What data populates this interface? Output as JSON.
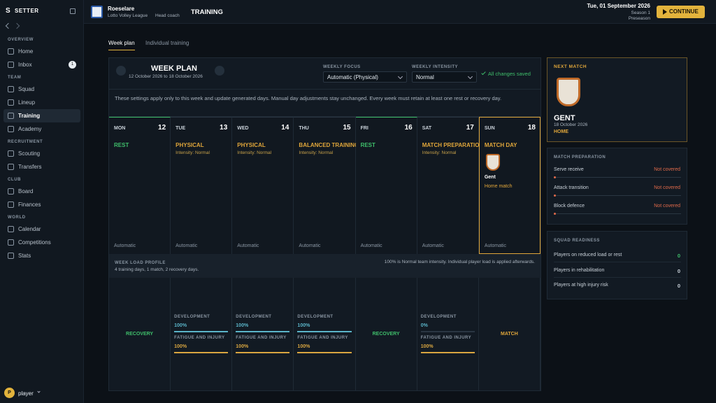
{
  "sidebar": {
    "logo_letter": "S",
    "brand": "SETTER",
    "sections": [
      {
        "title": "OVERVIEW",
        "items": [
          {
            "label": "Home"
          },
          {
            "label": "Inbox",
            "badge": 1
          }
        ]
      },
      {
        "title": "TEAM",
        "items": [
          {
            "label": "Squad"
          },
          {
            "label": "Lineup"
          },
          {
            "label": "Training",
            "active": true
          },
          {
            "label": "Academy"
          }
        ]
      },
      {
        "title": "RECRUITMENT",
        "items": [
          {
            "label": "Scouting"
          },
          {
            "label": "Transfers"
          }
        ]
      },
      {
        "title": "CLUB",
        "items": [
          {
            "label": "Board"
          },
          {
            "label": "Finances"
          }
        ]
      },
      {
        "title": "WORLD",
        "items": [
          {
            "label": "Calendar"
          },
          {
            "label": "Competitions"
          },
          {
            "label": "Stats"
          }
        ]
      }
    ],
    "user": {
      "initial": "P",
      "name": "player"
    }
  },
  "header": {
    "team": "Roeselare",
    "league": "Lotto Volley League",
    "role": "Head coach",
    "page": "TRAINING",
    "date": "Tue, 01 September 2026",
    "season": "Season 1",
    "phase": "Preseason",
    "button": "CONTINUE"
  },
  "tabs": [
    {
      "label": "Week plan",
      "active": true
    },
    {
      "label": "Individual training"
    }
  ],
  "week_plan": {
    "title": "WEEK PLAN",
    "range": "12 October 2026 to 18 October 2026",
    "focus_label": "WEEKLY FOCUS",
    "focus": "Automatic (Physical)",
    "intensity_label": "WEEKLY INTENSITY",
    "intensity": "Normal",
    "status": "All changes saved",
    "note": "These settings apply only to this week and update generated days. Manual day adjustments stay unchanged. Every week must retain at least one rest or recovery day.",
    "days": [
      {
        "weekday": "MON",
        "date": 12,
        "session": "REST",
        "color": "#3fbf6b",
        "mode": "Automatic"
      },
      {
        "weekday": "TUE",
        "date": 13,
        "session": "PHYSICAL",
        "color": "#e0a63a",
        "intensity": "Intensity: Normal",
        "mode": "Automatic"
      },
      {
        "weekday": "WED",
        "date": 14,
        "session": "PHYSICAL",
        "color": "#e0a63a",
        "intensity": "Intensity: Normal",
        "mode": "Automatic"
      },
      {
        "weekday": "THU",
        "date": 15,
        "session": "BALANCED TRAINING",
        "color": "#e0a63a",
        "intensity": "Intensity: Normal",
        "mode": "Automatic"
      },
      {
        "weekday": "FRI",
        "date": 16,
        "session": "REST",
        "color": "#3fbf6b",
        "mode": "Automatic"
      },
      {
        "weekday": "SAT",
        "date": 17,
        "session": "MATCH PREPARATION",
        "color": "#e0a63a",
        "intensity": "Intensity: Normal",
        "mode": "Automatic"
      },
      {
        "weekday": "SUN",
        "date": 18,
        "session": "MATCH DAY",
        "color": "#e0a63a",
        "opponent": "Gent",
        "match": "Home match",
        "mode": "Automatic"
      }
    ],
    "load_profile": {
      "title": "WEEK LOAD PROFILE",
      "summary": "4 training days, 1 match, 2 recovery days.",
      "note": "100% is Normal team intensity. Individual player load is applied afterwards.",
      "columns": [
        {
          "label": "RECOVERY",
          "color": "#3fbf6b"
        },
        {
          "development_label": "DEVELOPMENT",
          "development": {
            "value": 100,
            "label": "100%"
          },
          "fatigue_label": "FATIGUE AND INJURY",
          "fatigue": {
            "value": 100,
            "label": "100%"
          }
        },
        {
          "development_label": "DEVELOPMENT",
          "development": {
            "value": 100,
            "label": "100%"
          },
          "fatigue_label": "FATIGUE AND INJURY",
          "fatigue": {
            "value": 100,
            "label": "100%"
          }
        },
        {
          "development_label": "DEVELOPMENT",
          "development": {
            "value": 100,
            "label": "100%"
          },
          "fatigue_label": "FATIGUE AND INJURY",
          "fatigue": {
            "value": 100,
            "label": "100%"
          }
        },
        {
          "label": "RECOVERY",
          "color": "#3fbf6b"
        },
        {
          "development_label": "DEVELOPMENT",
          "development": {
            "value": 0,
            "label": "0%"
          },
          "fatigue_label": "FATIGUE AND INJURY",
          "fatigue": {
            "value": 100,
            "label": "100%"
          }
        },
        {
          "label": "MATCH",
          "color": "#e0a63a"
        }
      ]
    }
  },
  "next_match": {
    "title": "NEXT MATCH",
    "opponent": "GENT",
    "date": "18 October 2026",
    "venue": "HOME"
  },
  "match_preparation": {
    "title": "MATCH PREPARATION",
    "items": [
      {
        "label": "Serve receive",
        "status": "Not covered"
      },
      {
        "label": "Attack transition",
        "status": "Not covered"
      },
      {
        "label": "Block defence",
        "status": "Not covered"
      }
    ]
  },
  "squad_readiness": {
    "title": "SQUAD READINESS",
    "items": [
      {
        "label": "Players on reduced load or rest",
        "value": 0,
        "color": "#3fbf6b"
      },
      {
        "label": "Players in rehabilitation",
        "value": 0,
        "color": "#c9d1d9"
      },
      {
        "label": "Players at high injury risk",
        "value": 0,
        "color": "#c9d1d9"
      }
    ]
  }
}
